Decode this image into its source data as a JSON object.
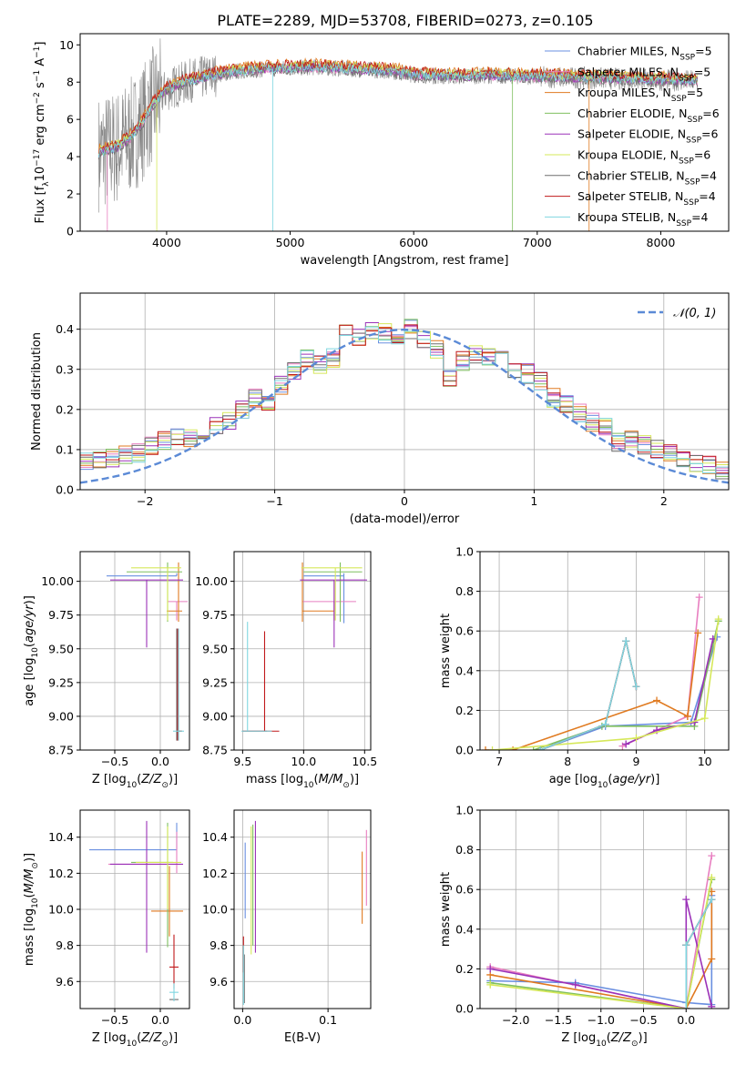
{
  "title": "PLATE=2289, MJD=53708, FIBERID=0273, z=0.105",
  "colors": {
    "chabrier_miles": "#6a8fe0",
    "salpeter_miles": "#e87fc0",
    "kroupa_miles": "#e07a20",
    "chabrier_elodie": "#7fbf5f",
    "salpeter_elodie": "#9b32b8",
    "kroupa_elodie": "#d6e85a",
    "chabrier_stelib": "#6e6e6e",
    "salpeter_stelib": "#c0181a",
    "kroupa_stelib": "#7fd6e0",
    "normal": "#5b8ad6",
    "grid": "#b0b0b0"
  },
  "chart_data": [
    {
      "id": "spectrum",
      "type": "line",
      "xlabel": "wavelength [Angstrom, rest frame]",
      "ylabel": "Flux [f_λ 10^-17 erg cm^-2 s^-1 A^-1]",
      "xlim": [
        3300,
        8550
      ],
      "ylim": [
        0,
        10.6
      ],
      "xticks": [
        4000,
        5000,
        6000,
        7000,
        8000
      ],
      "yticks": [
        0,
        2,
        4,
        6,
        8,
        10
      ],
      "grid": false,
      "legend_position": "right",
      "legend": [
        {
          "label": "Chabrier MILES, N_SSP=5",
          "color": "chabrier_miles"
        },
        {
          "label": "Salpeter MILES, N_SSP=5",
          "color": "salpeter_miles"
        },
        {
          "label": "Kroupa MILES, N_SSP=5",
          "color": "kroupa_miles"
        },
        {
          "label": "Chabrier ELODIE, N_SSP=6",
          "color": "chabrier_elodie"
        },
        {
          "label": "Salpeter ELODIE, N_SSP=6",
          "color": "salpeter_elodie"
        },
        {
          "label": "Kroupa ELODIE, N_SSP=6",
          "color": "kroupa_elodie"
        },
        {
          "label": "Chabrier STELIB, N_SSP=4",
          "color": "chabrier_stelib"
        },
        {
          "label": "Salpeter STELIB, N_SSP=4",
          "color": "salpeter_stelib"
        },
        {
          "label": "Kroupa STELIB, N_SSP=4",
          "color": "kroupa_stelib"
        }
      ],
      "continuum": {
        "x": [
          3450,
          3600,
          3700,
          3800,
          3900,
          4000,
          4200,
          4400,
          4600,
          4800,
          5000,
          5200,
          5500,
          5800,
          6000,
          6300,
          6600,
          6900,
          7200,
          7500,
          7800,
          8100,
          8300
        ],
        "y": [
          4.2,
          4.5,
          5.0,
          5.8,
          6.9,
          7.6,
          8.1,
          8.4,
          8.6,
          8.7,
          8.75,
          8.8,
          8.7,
          8.6,
          8.4,
          8.3,
          8.35,
          8.3,
          8.25,
          8.2,
          8.15,
          8.1,
          8.05
        ]
      }
    },
    {
      "id": "residual_hist",
      "type": "histogram",
      "xlabel": "(data-model)/error",
      "ylabel": "Normed distribution",
      "xlim": [
        -2.5,
        2.5
      ],
      "ylim": [
        0,
        0.49
      ],
      "xticks": [
        -2,
        -1,
        0,
        1,
        2
      ],
      "yticks": [
        0.0,
        0.1,
        0.2,
        0.3,
        0.4
      ],
      "grid": true,
      "legend": [
        {
          "label": "𝒩(0, 1)",
          "color": "normal"
        }
      ],
      "bin_width": 0.1,
      "mean_values": [
        0.04,
        0.03,
        0.04,
        0.04,
        0.06,
        0.07,
        0.07,
        0.08,
        0.09,
        0.09,
        0.11,
        0.12,
        0.13,
        0.13,
        0.14,
        0.16,
        0.17,
        0.2,
        0.23,
        0.22,
        0.26,
        0.3,
        0.33,
        0.31,
        0.33,
        0.4,
        0.38,
        0.4,
        0.39,
        0.37,
        0.4,
        0.37,
        0.35,
        0.28,
        0.32,
        0.34,
        0.33,
        0.35,
        0.3,
        0.29,
        0.27,
        0.23,
        0.21,
        0.19,
        0.17,
        0.16,
        0.12,
        0.13,
        0.11,
        0.1,
        0.09,
        0.07,
        0.07,
        0.06,
        0.05,
        0.05,
        0.04,
        0.04,
        0.03,
        0.03
      ],
      "gaussian": {
        "mean": 0,
        "sigma": 1
      }
    },
    {
      "id": "age_vs_Z",
      "type": "scatter",
      "xlabel": "Z [log10(Z/Z⊙)]",
      "ylabel": "age [log10(age/yr)]",
      "xlim": [
        -0.88,
        0.32
      ],
      "ylim": [
        8.75,
        10.22
      ],
      "xticks": [
        -0.5,
        0.0
      ],
      "xticklabels": [
        "−0.5",
        "0.0"
      ],
      "yticks": [
        8.75,
        9.0,
        9.25,
        9.5,
        9.75,
        10.0
      ],
      "grid": true,
      "points": [
        {
          "model": "chabrier_miles",
          "x": 0.18,
          "y": 10.04,
          "xerr": [
            0.77,
            0.0
          ],
          "yerr": [
            0.0,
            0.02
          ]
        },
        {
          "model": "salpeter_miles",
          "x": 0.18,
          "y": 9.85,
          "xerr": [
            0.1,
            0.12
          ],
          "yerr": [
            0.14,
            0.0
          ]
        },
        {
          "model": "kroupa_miles",
          "x": 0.2,
          "y": 9.78,
          "xerr": [
            0.13,
            0.04
          ],
          "yerr": [
            0.08,
            0.36
          ]
        },
        {
          "model": "chabrier_elodie",
          "x": 0.08,
          "y": 10.07,
          "xerr": [
            0.45,
            0.16
          ],
          "yerr": [
            0.37,
            0.07
          ]
        },
        {
          "model": "salpeter_elodie",
          "x": -0.15,
          "y": 10.01,
          "xerr": [
            0.4,
            0.4
          ],
          "yerr": [
            0.5,
            0.0
          ]
        },
        {
          "model": "kroupa_elodie",
          "x": 0.08,
          "y": 10.1,
          "xerr": [
            0.4,
            0.15
          ],
          "yerr": [
            0.39,
            0.0
          ]
        },
        {
          "model": "chabrier_stelib",
          "x": 0.18,
          "y": 8.89,
          "xerr": [
            0.0,
            0.05
          ],
          "yerr": [
            0.07,
            0.76
          ]
        },
        {
          "model": "salpeter_stelib",
          "x": 0.19,
          "y": 8.89,
          "xerr": [
            0.0,
            0.05
          ],
          "yerr": [
            0.07,
            0.76
          ]
        },
        {
          "model": "kroupa_stelib",
          "x": 0.2,
          "y": 8.89,
          "xerr": [
            0.06,
            0.06
          ],
          "yerr": [
            0.07,
            0.76
          ]
        }
      ]
    },
    {
      "id": "age_vs_mass",
      "type": "scatter",
      "xlabel": "mass [log10(M/M⊙)]",
      "ylabel": "",
      "xlim": [
        9.43,
        10.55
      ],
      "ylim": [
        8.75,
        10.22
      ],
      "xticks": [
        9.5,
        10.0,
        10.5
      ],
      "yticks": [
        8.75,
        9.0,
        9.25,
        9.5,
        9.75,
        10.0
      ],
      "grid": true,
      "points": [
        {
          "model": "chabrier_miles",
          "x": 10.33,
          "y": 10.04,
          "xerr": [
            0.33,
            0.0
          ],
          "yerr": [
            0.35,
            0.02
          ]
        },
        {
          "model": "salpeter_miles",
          "x": 10.25,
          "y": 9.85,
          "xerr": [
            0.26,
            0.18
          ],
          "yerr": [
            0.14,
            0.0
          ]
        },
        {
          "model": "kroupa_miles",
          "x": 9.99,
          "y": 9.78,
          "xerr": [
            0.0,
            0.26
          ],
          "yerr": [
            0.08,
            0.36
          ]
        },
        {
          "model": "chabrier_elodie",
          "x": 10.3,
          "y": 10.07,
          "xerr": [
            0.3,
            0.18
          ],
          "yerr": [
            0.37,
            0.07
          ]
        },
        {
          "model": "salpeter_elodie",
          "x": 10.25,
          "y": 10.01,
          "xerr": [
            0.28,
            0.27
          ],
          "yerr": [
            0.5,
            0.0
          ]
        },
        {
          "model": "kroupa_elodie",
          "x": 10.26,
          "y": 10.1,
          "xerr": [
            0.28,
            0.22
          ],
          "yerr": [
            0.39,
            0.0
          ]
        },
        {
          "model": "chabrier_stelib",
          "x": 9.5,
          "y": 8.89,
          "xerr": [
            0.0,
            0.2
          ],
          "yerr": [
            0.0,
            0.0
          ]
        },
        {
          "model": "salpeter_stelib",
          "x": 9.68,
          "y": 8.89,
          "xerr": [
            0.18,
            0.12
          ],
          "yerr": [
            0.0,
            0.74
          ]
        },
        {
          "model": "kroupa_stelib",
          "x": 9.54,
          "y": 8.89,
          "xerr": [
            0.05,
            0.2
          ],
          "yerr": [
            0.0,
            0.81
          ]
        }
      ]
    },
    {
      "id": "weight_vs_age",
      "type": "line",
      "xlabel": "age [log10(age/yr)]",
      "ylabel": "mass weight",
      "xlim": [
        6.72,
        10.35
      ],
      "ylim": [
        0.0,
        1.0
      ],
      "xticks": [
        7,
        8,
        9,
        10
      ],
      "yticks": [
        0.0,
        0.2,
        0.4,
        0.6,
        0.8,
        1.0
      ],
      "grid": true,
      "series": [
        {
          "model": "chabrier_miles",
          "x": [
            7.6,
            8.55,
            9.8,
            10.18
          ],
          "y": [
            0.0,
            0.12,
            0.14,
            0.57
          ]
        },
        {
          "model": "salpeter_miles",
          "x": [
            8.8,
            9.3,
            9.75,
            9.92
          ],
          "y": [
            0.02,
            0.1,
            0.17,
            0.77
          ]
        },
        {
          "model": "kroupa_miles",
          "x": [
            6.8,
            7.2,
            9.3,
            9.75,
            9.9
          ],
          "y": [
            0.0,
            0.0,
            0.25,
            0.17,
            0.59
          ]
        },
        {
          "model": "chabrier_elodie",
          "x": [
            7.5,
            8.5,
            9.85,
            10.2
          ],
          "y": [
            0.0,
            0.12,
            0.12,
            0.65
          ]
        },
        {
          "model": "salpeter_elodie",
          "x": [
            8.85,
            9.3,
            9.85,
            10.12
          ],
          "y": [
            0.03,
            0.1,
            0.14,
            0.56
          ]
        },
        {
          "model": "kroupa_elodie",
          "x": [
            6.9,
            9.0,
            10.0,
            10.2
          ],
          "y": [
            0.0,
            0.06,
            0.16,
            0.66
          ]
        },
        {
          "model": "chabrier_stelib",
          "x": [
            7.6,
            8.55,
            8.85,
            9.0
          ],
          "y": [
            0.0,
            0.13,
            0.55,
            0.32
          ]
        },
        {
          "model": "salpeter_stelib",
          "x": [
            7.6,
            8.55,
            8.85,
            9.0
          ],
          "y": [
            0.0,
            0.13,
            0.55,
            0.32
          ]
        },
        {
          "model": "kroupa_stelib",
          "x": [
            7.6,
            8.55,
            8.85,
            9.0
          ],
          "y": [
            0.0,
            0.13,
            0.55,
            0.32
          ]
        }
      ]
    },
    {
      "id": "mass_vs_Z",
      "type": "scatter",
      "xlabel": "Z [log10(Z/Z⊙)]",
      "ylabel": "mass [log10(M/M⊙)]",
      "xlim": [
        -0.88,
        0.32
      ],
      "ylim": [
        9.45,
        10.55
      ],
      "xticks": [
        -0.5,
        0.0
      ],
      "xticklabels": [
        "−0.5",
        "0.0"
      ],
      "yticks": [
        9.6,
        9.8,
        10.0,
        10.2,
        10.4
      ],
      "grid": true,
      "points": [
        {
          "model": "chabrier_miles",
          "x": 0.18,
          "y": 10.33,
          "xerr": [
            0.96,
            0.0
          ],
          "yerr": [
            0.0,
            0.15
          ]
        },
        {
          "model": "salpeter_miles",
          "x": 0.18,
          "y": 10.25,
          "xerr": [
            0.75,
            0.0
          ],
          "yerr": [
            0.05,
            0.18
          ]
        },
        {
          "model": "kroupa_miles",
          "x": 0.1,
          "y": 9.99,
          "xerr": [
            0.2,
            0.15
          ],
          "yerr": [
            0.14,
            0.25
          ]
        },
        {
          "model": "chabrier_elodie",
          "x": 0.08,
          "y": 10.26,
          "xerr": [
            0.4,
            0.06
          ],
          "yerr": [
            0.47,
            0.22
          ]
        },
        {
          "model": "salpeter_elodie",
          "x": -0.15,
          "y": 10.25,
          "xerr": [
            0.4,
            0.4
          ],
          "yerr": [
            0.49,
            0.24
          ]
        },
        {
          "model": "kroupa_elodie",
          "x": 0.08,
          "y": 10.26,
          "xerr": [
            0.35,
            0.15
          ],
          "yerr": [
            0.26,
            0.2
          ]
        },
        {
          "model": "chabrier_stelib",
          "x": 0.15,
          "y": 9.5,
          "xerr": [
            0.05,
            0.05
          ],
          "yerr": [
            0.0,
            0.0
          ]
        },
        {
          "model": "salpeter_stelib",
          "x": 0.15,
          "y": 9.68,
          "xerr": [
            0.05,
            0.05
          ],
          "yerr": [
            0.12,
            0.18
          ]
        },
        {
          "model": "kroupa_stelib",
          "x": 0.15,
          "y": 9.54,
          "xerr": [
            0.05,
            0.05
          ],
          "yerr": [
            0.05,
            0.05
          ]
        }
      ]
    },
    {
      "id": "mass_vs_ebv",
      "type": "scatter",
      "xlabel": "E(B-V)",
      "ylabel": "",
      "xlim": [
        -0.01,
        0.15
      ],
      "ylim": [
        9.45,
        10.55
      ],
      "xticks": [
        0.0,
        0.1
      ],
      "yticks": [
        9.6,
        9.8,
        10.0,
        10.2,
        10.4
      ],
      "grid": true,
      "points": [
        {
          "model": "chabrier_miles",
          "x": 0.003,
          "y": 10.2,
          "yerr": [
            0.25,
            0.17
          ]
        },
        {
          "model": "salpeter_miles",
          "x": 0.145,
          "y": 10.22,
          "yerr": [
            0.2,
            0.22
          ]
        },
        {
          "model": "kroupa_miles",
          "x": 0.14,
          "y": 10.1,
          "yerr": [
            0.18,
            0.22
          ]
        },
        {
          "model": "chabrier_elodie",
          "x": 0.012,
          "y": 10.2,
          "yerr": [
            0.4,
            0.27
          ]
        },
        {
          "model": "salpeter_elodie",
          "x": 0.015,
          "y": 10.15,
          "yerr": [
            0.39,
            0.34
          ]
        },
        {
          "model": "kroupa_elodie",
          "x": 0.01,
          "y": 10.15,
          "yerr": [
            0.4,
            0.31
          ]
        },
        {
          "model": "chabrier_stelib",
          "x": 0.002,
          "y": 9.6,
          "yerr": [
            0.12,
            0.15
          ]
        },
        {
          "model": "salpeter_stelib",
          "x": 0.001,
          "y": 9.75,
          "yerr": [
            0.1,
            0.1
          ]
        },
        {
          "model": "kroupa_stelib",
          "x": 0.001,
          "y": 9.65,
          "yerr": [
            0.18,
            0.15
          ]
        }
      ]
    },
    {
      "id": "weight_vs_Z",
      "type": "line",
      "xlabel": "Z [log10(Z/Z⊙)]",
      "ylabel": "mass weight",
      "xlim": [
        -2.42,
        0.5
      ],
      "ylim": [
        0.0,
        1.0
      ],
      "xticks": [
        -2.0,
        -1.5,
        -1.0,
        -0.5,
        0.0
      ],
      "xticklabels": [
        "−2.0",
        "−1.5",
        "−1.0",
        "−0.5",
        "0.0"
      ],
      "yticks": [
        0.0,
        0.2,
        0.4,
        0.6,
        0.8,
        1.0
      ],
      "grid": true,
      "series": [
        {
          "model": "chabrier_miles",
          "x": [
            -2.3,
            -1.3,
            0.0,
            0.3,
            0.3
          ],
          "y": [
            0.14,
            0.13,
            0.03,
            0.02,
            0.57
          ]
        },
        {
          "model": "salpeter_miles",
          "x": [
            -2.3,
            0.0,
            0.3
          ],
          "y": [
            0.21,
            0.0,
            0.77
          ]
        },
        {
          "model": "kroupa_miles",
          "x": [
            -2.3,
            0.0,
            0.3,
            0.3
          ],
          "y": [
            0.17,
            0.0,
            0.25,
            0.59
          ]
        },
        {
          "model": "chabrier_elodie",
          "x": [
            -2.3,
            0.0,
            0.3
          ],
          "y": [
            0.13,
            0.0,
            0.65
          ]
        },
        {
          "model": "salpeter_elodie",
          "x": [
            -2.3,
            -1.3,
            0.0,
            0.0,
            0.3
          ],
          "y": [
            0.2,
            0.12,
            0.0,
            0.55,
            0.01
          ]
        },
        {
          "model": "kroupa_elodie",
          "x": [
            -2.3,
            0.0,
            0.3
          ],
          "y": [
            0.12,
            0.0,
            0.66
          ]
        },
        {
          "model": "chabrier_stelib",
          "x": [
            0.0,
            0.0,
            0.3
          ],
          "y": [
            0.0,
            0.32,
            0.55
          ]
        },
        {
          "model": "salpeter_stelib",
          "x": [
            0.0,
            0.0,
            0.3
          ],
          "y": [
            0.0,
            0.32,
            0.55
          ]
        },
        {
          "model": "kroupa_stelib",
          "x": [
            0.0,
            0.0,
            0.3
          ],
          "y": [
            0.0,
            0.32,
            0.55
          ]
        }
      ]
    }
  ]
}
